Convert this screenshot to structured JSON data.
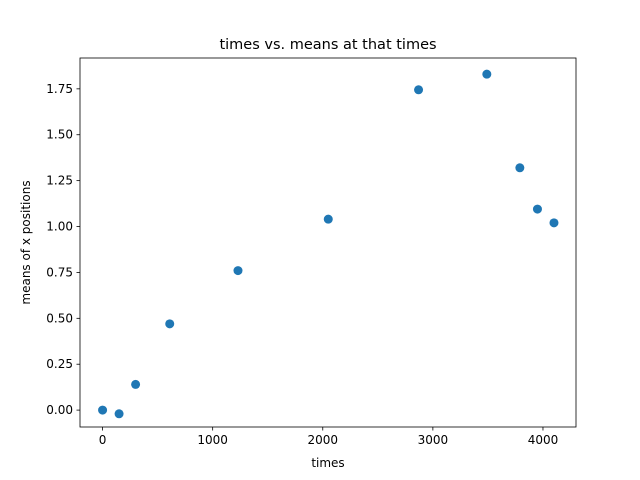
{
  "chart_data": {
    "type": "scatter",
    "title": "times vs. means at that times",
    "xlabel": "times",
    "ylabel": "means of x positions",
    "xlim": [
      -205,
      4300
    ],
    "ylim": [
      -0.092,
      1.918
    ],
    "x_ticks": [
      {
        "value": 0,
        "label": "0"
      },
      {
        "value": 1000,
        "label": "1000"
      },
      {
        "value": 2000,
        "label": "2000"
      },
      {
        "value": 3000,
        "label": "3000"
      },
      {
        "value": 4000,
        "label": "4000"
      }
    ],
    "y_ticks": [
      {
        "value": 0.0,
        "label": "0.00"
      },
      {
        "value": 0.25,
        "label": "0.25"
      },
      {
        "value": 0.5,
        "label": "0.50"
      },
      {
        "value": 0.75,
        "label": "0.75"
      },
      {
        "value": 1.0,
        "label": "1.00"
      },
      {
        "value": 1.25,
        "label": "1.25"
      },
      {
        "value": 1.5,
        "label": "1.50"
      },
      {
        "value": 1.75,
        "label": "1.75"
      }
    ],
    "grid": false,
    "marker_color": "#1f77b4",
    "series": [
      {
        "points": [
          {
            "x": 0,
            "y": 0.0
          },
          {
            "x": 150,
            "y": -0.02
          },
          {
            "x": 300,
            "y": 0.14
          },
          {
            "x": 610,
            "y": 0.47
          },
          {
            "x": 1230,
            "y": 0.76
          },
          {
            "x": 2050,
            "y": 1.04
          },
          {
            "x": 2870,
            "y": 1.745
          },
          {
            "x": 3490,
            "y": 1.83
          },
          {
            "x": 3790,
            "y": 1.32
          },
          {
            "x": 3950,
            "y": 1.095
          },
          {
            "x": 4100,
            "y": 1.02
          }
        ]
      }
    ]
  }
}
